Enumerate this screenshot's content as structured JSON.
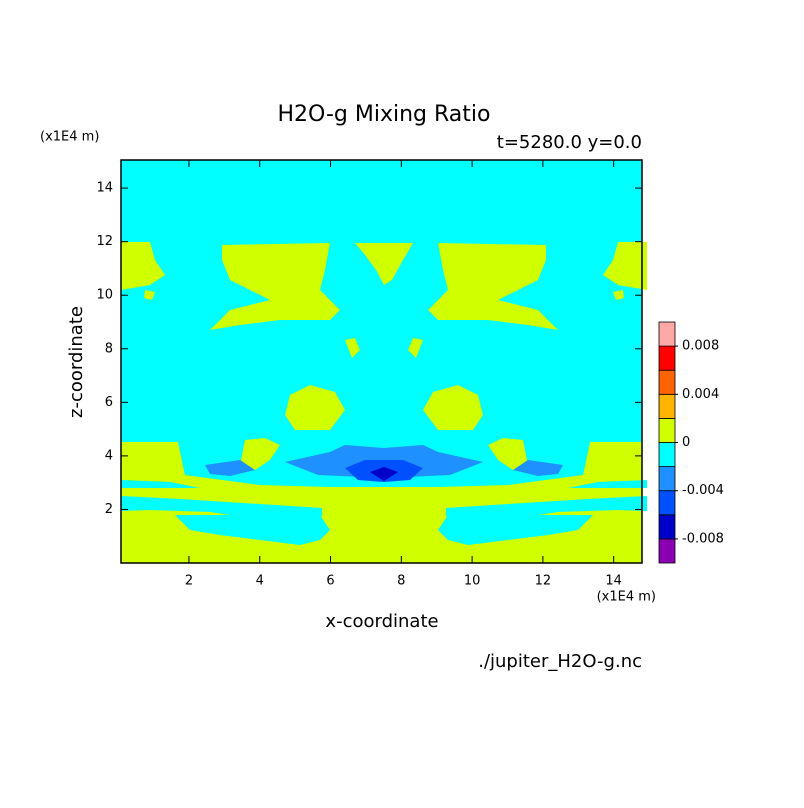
{
  "chart_data": {
    "type": "contour",
    "title": "H2O-g Mixing Ratio",
    "subtitle": "t=5280.0 y=0.0",
    "x_label": "x-coordinate",
    "y_label": "z-coordinate",
    "x_unit": "(x1E4 m)",
    "y_unit": "(x1E4 m)",
    "source": "./jupiter_H2O-g.nc",
    "xlim": [
      0.08,
      14.8
    ],
    "ylim": [
      0,
      15.05
    ],
    "xticks": [
      2,
      4,
      6,
      8,
      10,
      12,
      14
    ],
    "yticks": [
      2,
      4,
      6,
      8,
      10,
      12,
      14
    ],
    "colorbar": {
      "clim": [
        -0.01,
        0.01
      ],
      "colors": [
        "#8c00b4",
        "#0000c8",
        "#0050ff",
        "#1e90ff",
        "#00ffff",
        "#d0ff00",
        "#ffb400",
        "#ff6400",
        "#ff0000",
        "#ffa8a8"
      ],
      "ticks": [
        0.008,
        0.004,
        0,
        -0.004,
        -0.008
      ]
    }
  }
}
